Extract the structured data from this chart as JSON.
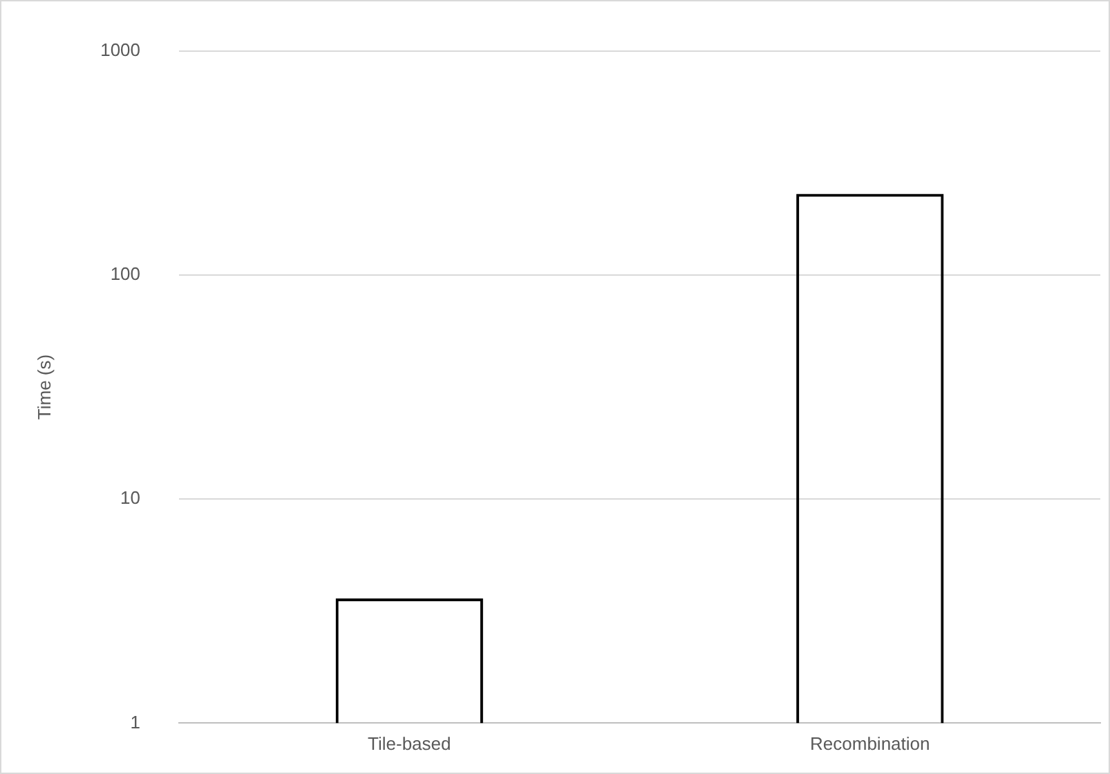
{
  "chart_data": {
    "type": "bar",
    "ylabel": "Time (s)",
    "categories": [
      "Tile-based",
      "Recombination"
    ],
    "values": [
      3.6,
      230
    ],
    "color": "#000000",
    "log": "y",
    "ylim": [
      1,
      1000
    ],
    "yticks": [
      1,
      10,
      100,
      1000
    ],
    "grid": "y",
    "legend": false
  }
}
